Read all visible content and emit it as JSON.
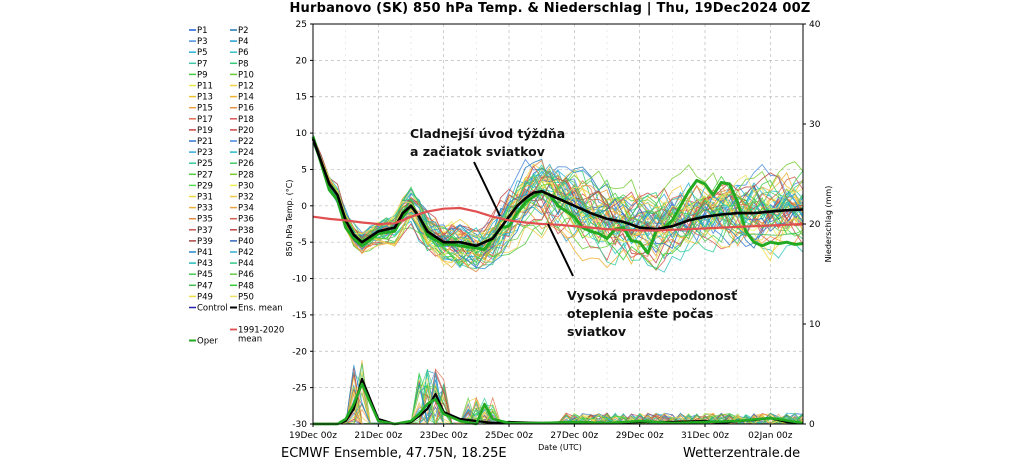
{
  "title": "Hurbanovo  (SK)  850 hPa Temp. & Niederschlag | Thu, 19Dec2024 00Z",
  "footer": {
    "left": "ECMWF Ensemble, 47.75N, 18.25E",
    "right": "Wetterzentrale.de"
  },
  "annotations": [
    {
      "text": "Cladnejší úvod týždňa\na začiatok sviatkov"
    },
    {
      "text": "Vysoká pravdepodonosť\noteplenia ešte počas\nsviatkov"
    }
  ],
  "legend": {
    "members": [
      "P1",
      "P2",
      "P3",
      "P4",
      "P5",
      "P6",
      "P7",
      "P8",
      "P9",
      "P10",
      "P11",
      "P12",
      "P13",
      "P14",
      "P15",
      "P16",
      "P17",
      "P18",
      "P19",
      "P20",
      "P21",
      "P22",
      "P23",
      "P24",
      "P25",
      "P26",
      "P27",
      "P28",
      "P29",
      "P30",
      "P31",
      "P32",
      "P33",
      "P34",
      "P35",
      "P36",
      "P37",
      "P38",
      "P39",
      "P40",
      "P41",
      "P42",
      "P43",
      "P44",
      "P45",
      "P46",
      "P47",
      "P48",
      "P49",
      "P50"
    ],
    "member_colors": [
      "#1f5fd6",
      "#1f77b4",
      "#4a90e2",
      "#1f9fcf",
      "#24b3d8",
      "#33c2c2",
      "#3fc9a6",
      "#33cc77",
      "#44cc44",
      "#66cc33",
      "#e8e84a",
      "#f0d040",
      "#f0c030",
      "#f0b030",
      "#f0a040",
      "#e89040",
      "#e07050",
      "#dd5555",
      "#cc4444",
      "#d04848",
      "#3377cc",
      "#4488dd",
      "#33aadd",
      "#22bbcc",
      "#33cc99",
      "#44cc66",
      "#55cc44",
      "#77cc33",
      "#55dd55",
      "#eeee55",
      "#f0d840",
      "#f0c848",
      "#f0b040",
      "#e8a040",
      "#e08840",
      "#d06050",
      "#cc5555",
      "#c04444",
      "#aa4444",
      "#3366bb",
      "#2288cc",
      "#33aacc",
      "#22bbbb",
      "#33cc88",
      "#44cc55",
      "#66cc44",
      "#44bb55",
      "#33cc33",
      "#eedd44",
      "#f0e060"
    ],
    "control_label": "Control",
    "control_color": "#2222aa",
    "mean_label": "Ens. mean",
    "mean_color": "#000000",
    "clim_label": "1991-2020\nmean",
    "clim_color": "#e05050",
    "oper_label": "Oper",
    "oper_color": "#22aa22"
  },
  "chart_data": {
    "type": "line",
    "title": "Hurbanovo  (SK)  850 hPa Temp. & Niederschlag | Thu, 19Dec2024 00Z",
    "xlabel": "Date (UTC)",
    "ylabel": "850 hPa Temp. (°C)",
    "y2label": "Niederschlag (mm)",
    "ylim": [
      -30,
      25
    ],
    "y2lim": [
      0,
      40
    ],
    "yticks": [
      25,
      20,
      15,
      10,
      5,
      0,
      -5,
      -10,
      -15,
      -20,
      -25,
      -30
    ],
    "y2ticks": [
      40,
      30,
      20,
      10,
      0
    ],
    "xticks": [
      "19Dec 00z",
      "21Dec 00z",
      "23Dec 00z",
      "25Dec 00z",
      "27Dec 00z",
      "29Dec 00z",
      "31Dec 00z",
      "02Jan 00z"
    ],
    "xrange_hours": [
      0,
      360
    ],
    "grid": true,
    "series": [
      {
        "name": "Oper",
        "x_hours": [
          0,
          12,
          18,
          24,
          30,
          36,
          48,
          60,
          66,
          72,
          78,
          84,
          96,
          102,
          108,
          120,
          126,
          132,
          138,
          144,
          150,
          156,
          168,
          174,
          180,
          192,
          198,
          204,
          210,
          216,
          222,
          228,
          234,
          240,
          246,
          252,
          258,
          264,
          270,
          276,
          282,
          288,
          294,
          300,
          306,
          312,
          318,
          324,
          330,
          336,
          342,
          348,
          354,
          360
        ],
        "values": [
          9.5,
          2.2,
          0.8,
          -3,
          -4.5,
          -5.5,
          -3.8,
          -3.5,
          -1.5,
          0,
          -1.5,
          -4,
          -5.3,
          -5.3,
          -5.5,
          -5.8,
          -6,
          -4.5,
          -3,
          -2.8,
          -1,
          0.5,
          2,
          1.5,
          0,
          -1.5,
          -3,
          -3.5,
          -3.8,
          -4.5,
          -3.2,
          -3,
          -4.8,
          -5,
          -6.5,
          -3.5,
          -3,
          -2,
          0,
          2,
          3.5,
          3,
          1.5,
          3.2,
          3,
          0.5,
          -3.5,
          -5,
          -5.5,
          -5,
          -5.2,
          -5,
          -5.3,
          -5.2
        ]
      },
      {
        "name": "Ens. mean",
        "x_hours": [
          0,
          12,
          18,
          24,
          30,
          36,
          48,
          60,
          66,
          72,
          78,
          84,
          96,
          108,
          120,
          132,
          144,
          150,
          156,
          162,
          168,
          180,
          192,
          204,
          216,
          228,
          240,
          252,
          264,
          276,
          288,
          300,
          312,
          324,
          336,
          348,
          360
        ],
        "values": [
          9.2,
          3,
          1.5,
          -2,
          -4,
          -5,
          -3.5,
          -3,
          -1,
          0,
          -1.5,
          -3.5,
          -5,
          -5,
          -5.5,
          -4.5,
          -1.5,
          0,
          1,
          1.8,
          2,
          1,
          0,
          -1,
          -1.8,
          -2.2,
          -3,
          -3.2,
          -2.8,
          -2,
          -1.5,
          -1.2,
          -1,
          -1,
          -0.8,
          -0.6,
          -0.5
        ]
      },
      {
        "name": "1991-2020 mean",
        "x_hours": [
          0,
          12,
          24,
          36,
          48,
          60,
          72,
          84,
          96,
          108,
          120,
          132,
          144,
          156,
          168,
          180,
          192,
          204,
          216,
          228,
          240,
          252,
          264,
          276,
          288,
          300,
          312,
          324,
          336,
          348,
          360
        ],
        "values": [
          -1.5,
          -1.8,
          -2,
          -2.3,
          -2.5,
          -2.4,
          -1.5,
          -0.8,
          -0.4,
          -0.3,
          -0.8,
          -1.5,
          -2,
          -2.3,
          -2.5,
          -2.6,
          -2.8,
          -3,
          -3.2,
          -3.3,
          -3.4,
          -3.4,
          -3.3,
          -3.2,
          -3.1,
          -3,
          -2.9,
          -2.8,
          -2.7,
          -2.6,
          -2.5
        ]
      }
    ],
    "precip_series": [
      {
        "name": "Ens. mean",
        "x_hours": [
          0,
          12,
          18,
          24,
          30,
          36,
          48,
          60,
          72,
          78,
          84,
          90,
          96,
          108,
          120,
          132,
          144,
          168,
          192,
          216,
          240,
          264,
          288,
          300,
          312,
          324,
          336,
          348,
          360
        ],
        "values": [
          0,
          0,
          0,
          0.3,
          1.5,
          4.5,
          0.5,
          0,
          0.2,
          0.8,
          1.5,
          3,
          1.2,
          0.5,
          0.3,
          0.1,
          0.2,
          0.1,
          0.2,
          0.1,
          0.2,
          0.2,
          0.3,
          0.1,
          0.3,
          0.4,
          0.6,
          0.2,
          0.1
        ]
      },
      {
        "name": "Oper",
        "x_hours": [
          0,
          12,
          18,
          24,
          30,
          36,
          48,
          60,
          72,
          78,
          84,
          90,
          96,
          108,
          120,
          126,
          132,
          144,
          168,
          192,
          216,
          240,
          264,
          288,
          312,
          336,
          360
        ],
        "values": [
          0,
          0,
          0,
          0.5,
          2,
          4,
          0.3,
          0,
          0.3,
          1,
          2,
          2.5,
          1,
          0.3,
          0,
          2,
          0.5,
          0.1,
          0.1,
          0.2,
          0.1,
          0.3,
          0.1,
          0.2,
          0.3,
          0.6,
          0.1
        ]
      }
    ]
  }
}
